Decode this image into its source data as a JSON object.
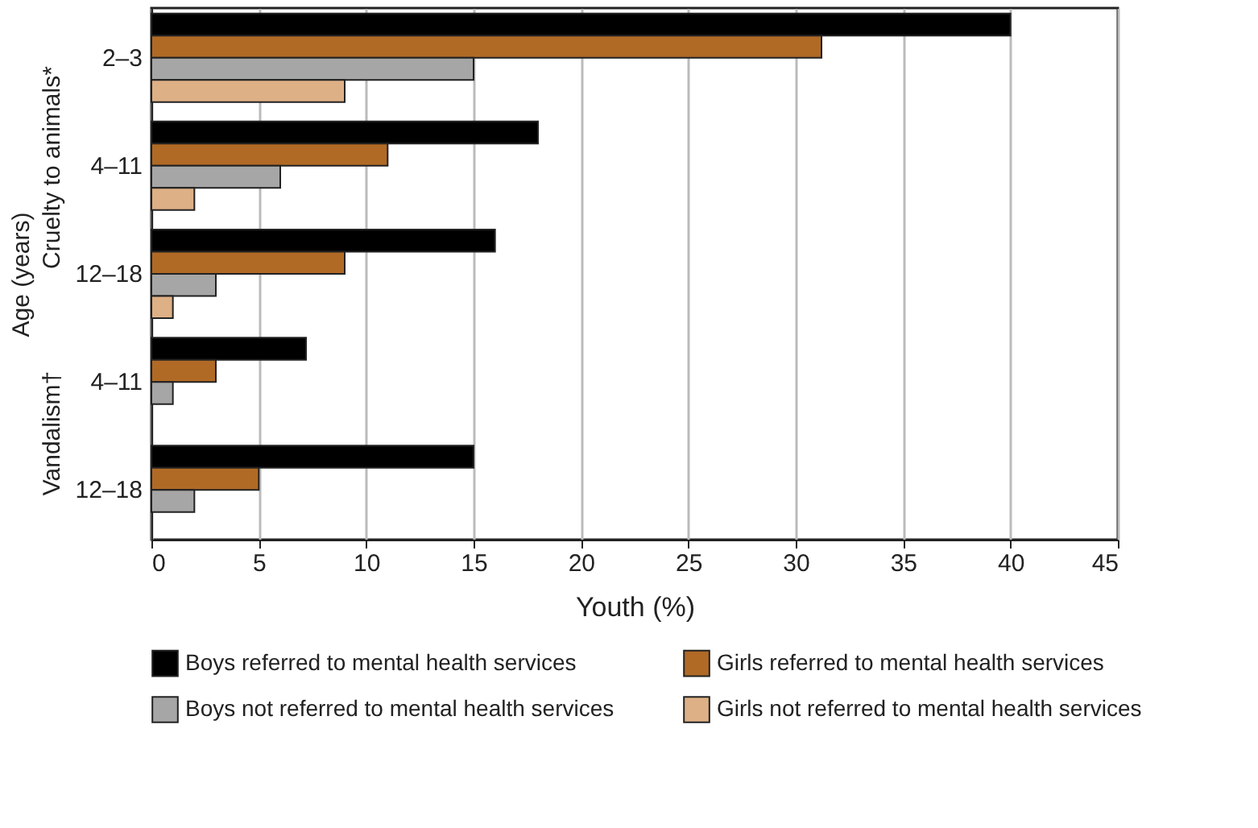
{
  "chart_data": {
    "type": "bar",
    "orientation": "horizontal",
    "categories": [
      "2–3",
      "4–11",
      "12–18",
      "4–11",
      "12–18"
    ],
    "series": [
      {
        "name": "Boys referred to mental health services",
        "color": "#000000",
        "values": [
          40,
          18,
          16,
          7.2,
          15
        ]
      },
      {
        "name": "Girls referred to mental health services",
        "color": "#b06a25",
        "values": [
          31.2,
          11,
          9,
          3,
          5
        ]
      },
      {
        "name": "Boys not referred to mental health services",
        "color": "#a6a6a6",
        "values": [
          15,
          6,
          3,
          1,
          2
        ]
      },
      {
        "name": "Girls not referred to mental health services",
        "color": "#deb086",
        "values": [
          9,
          2,
          1,
          null,
          null
        ]
      }
    ],
    "xlabel": "Youth (%)",
    "ylabel": "Age (years)",
    "annotations": [
      "Cruelty to animals*",
      "Vandalism†"
    ],
    "xlim": [
      0,
      45
    ],
    "xticks": [
      0,
      5,
      10,
      15,
      20,
      25,
      30,
      35,
      40,
      45
    ],
    "grid": "x",
    "legend": "bottom"
  }
}
